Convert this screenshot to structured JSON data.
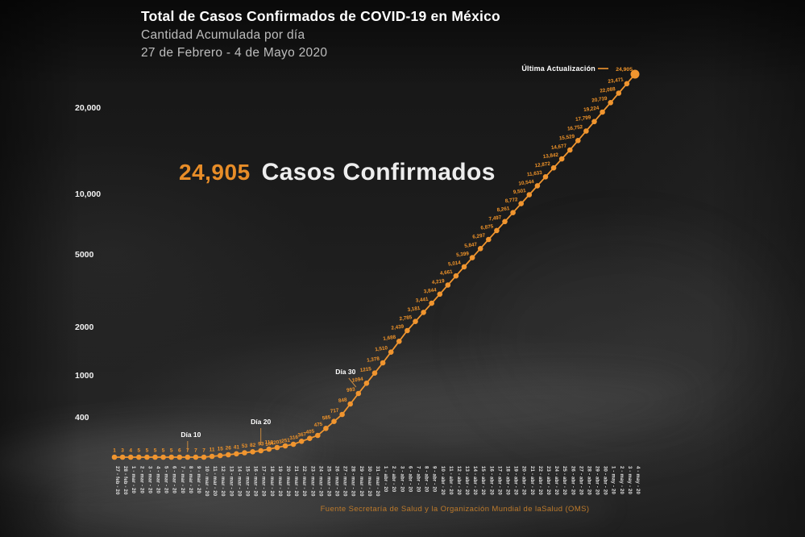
{
  "header": {
    "title": "Total de Casos Confirmados de COVID-19 en México",
    "subtitle": "Cantidad Acumulada por día",
    "date_range": "27 de Febrero - 4 de Mayo 2020"
  },
  "headline": {
    "value": "24,905",
    "label": "Casos Confirmados"
  },
  "annotations": {
    "dia10": {
      "label": "Día 10",
      "index": 9
    },
    "dia20": {
      "label": "Día 20",
      "index": 18
    },
    "dia30": {
      "label": "Día 30",
      "index": 30
    },
    "last_update": {
      "label": "Última Actualización",
      "value_label": "24,905"
    }
  },
  "footer": {
    "source": "Fuente Secretaría de Salud y la Organización Mundial de laSalud (OMS)"
  },
  "colors": {
    "accent": "#F0952F",
    "accent_dim": "#C8893E",
    "label_orange": "#EF9329",
    "text_white": "#FFFFFF",
    "tick_white": "#E2E2E2",
    "background": "#1B1B1B"
  },
  "chart_data": {
    "type": "line",
    "title": "Total de Casos Confirmados de COVID-19 en México",
    "subtitle": "Cantidad Acumulada por día, 27 de Febrero - 4 de Mayo 2020",
    "scale": "log-like (no gridlines, labels only)",
    "legend": "none",
    "y_axis_ticks": [
      "20,000",
      "10,000",
      "5000",
      "2000",
      "1000",
      "400"
    ],
    "x": [
      "27 - feb - 20",
      "28 - feb - 20",
      "1 - mar - 20",
      "2 - mar - 20",
      "3 - mar - 20",
      "4 - mar - 20",
      "5 - mar - 20",
      "6 - mar - 20",
      "7 - mar - 20",
      "8 - mar - 20",
      "9 - mar - 20",
      "10 - mar - 20",
      "11 - mar - 20",
      "12 - mar - 20",
      "13 - mar - 20",
      "14 - mar - 20",
      "15 - mar - 20",
      "16 - mar - 20",
      "17 - mar - 20",
      "18 - mar - 20",
      "19 - mar - 20",
      "20 - mar - 20",
      "21 - mar - 20",
      "22 - mar - 20",
      "23 - mar - 20",
      "24 - mar - 20",
      "25 - mar - 20",
      "26 - mar - 20",
      "27 - mar - 20",
      "28 - mar - 20",
      "29 - mar - 20",
      "30 - mar - 20",
      "31 - mar - 20",
      "1 - abr - 20",
      "2 - abr - 20",
      "3 - abr - 20",
      "6 - abr - 20",
      "7 - abr - 20",
      "8 - abr - 20",
      "9 - abr - 20",
      "10 - abr - 20",
      "11 - abr - 20",
      "12 - abr - 20",
      "13 - abr - 20",
      "14 - abr - 20",
      "15 - abr - 20",
      "16 - abr - 20",
      "17 - abr - 20",
      "18 - abr - 20",
      "19 - abr - 20",
      "20 - abr - 20",
      "21 - abr - 20",
      "22 - abr - 20",
      "23 - abr - 20",
      "24 - abr - 20",
      "25 - abr - 20",
      "26 - abr - 20",
      "27 - abr - 20",
      "28 - abr - 20",
      "29 - abr - 20",
      "30 - abr - 20",
      "1 - may - 20",
      "2 - may - 20",
      "3 - may - 20",
      "4 - may - 20"
    ],
    "values": [
      1,
      3,
      4,
      5,
      5,
      5,
      5,
      5,
      6,
      7,
      7,
      7,
      11,
      15,
      26,
      41,
      53,
      82,
      93,
      118,
      164,
      203,
      251,
      316,
      367,
      405,
      475,
      585,
      717,
      848,
      993,
      1094,
      1215,
      1378,
      1510,
      1688,
      2439,
      2785,
      3181,
      3441,
      3844,
      4219,
      4661,
      5014,
      5399,
      5847,
      6297,
      6875,
      7497,
      8261,
      8772,
      9501,
      10544,
      11633,
      12872,
      13842,
      14677,
      15529,
      16752,
      17799,
      19224,
      20739,
      22088,
      23471,
      24905
    ],
    "point_labels": [
      "1",
      "3",
      "4",
      "5",
      "5",
      "5",
      "5",
      "5",
      "6",
      "7",
      "7",
      "7",
      "11",
      "15",
      "26",
      "41",
      "53",
      "82",
      "93",
      "118",
      "164",
      "203",
      "251",
      "316",
      "367",
      "405",
      "475",
      "585",
      "717",
      "848",
      "993",
      "1094",
      "1215",
      "1,378",
      "1,510",
      "1,688",
      "2,439",
      "2,785",
      "3,181",
      "3,441",
      "3,844",
      "4,219",
      "4,661",
      "5,014",
      "5,399",
      "5,847",
      "6,297",
      "6,875",
      "7,497",
      "8,261",
      "8,772",
      "9,501",
      "10,544",
      "11,633",
      "12,872",
      "13,842",
      "14,677",
      "15,529",
      "16,752",
      "17,799",
      "19,224",
      "20,739",
      "22,088",
      "23,471",
      "24,905"
    ]
  }
}
